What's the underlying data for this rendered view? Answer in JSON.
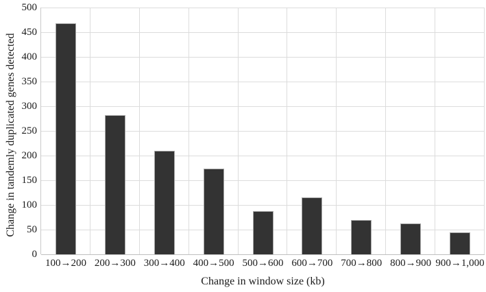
{
  "chart_data": {
    "type": "bar",
    "title": "",
    "categories": [
      "100→200",
      "200→300",
      "300→400",
      "400→500",
      "500→600",
      "600→700",
      "700→800",
      "800→900",
      "900→1,000"
    ],
    "values": [
      468,
      282,
      210,
      174,
      88,
      115,
      70,
      63,
      44
    ],
    "xlabel": "Change in window size (kb)",
    "ylabel": "Change in tandemly duplicated genes detected",
    "ylim": [
      0,
      500
    ],
    "ytick_step": 50,
    "ytick_labels": [
      "0",
      "50",
      "100",
      "150",
      "200",
      "250",
      "300",
      "350",
      "400",
      "450",
      "500"
    ],
    "grid": true,
    "legend": "none",
    "bar_color": "#333333",
    "bar_border_color": "#a6a6a6",
    "gridline_color": "#dcdcdc",
    "axis_color": "#bfbfbf",
    "text_color": "#1a1a1a",
    "background_color": "#ffffff"
  }
}
